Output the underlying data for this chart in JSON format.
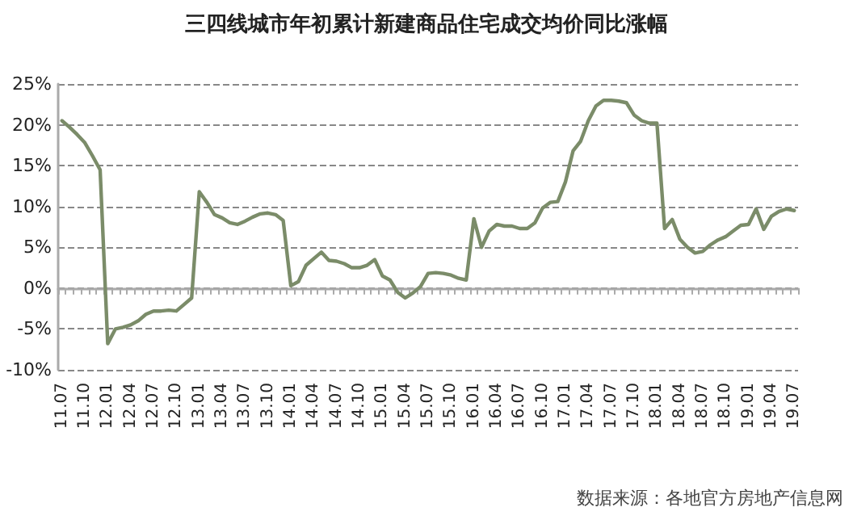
{
  "chart_data": {
    "type": "line",
    "title": "三四线城市年初累计新建商品住宅成交均价同比涨幅",
    "annotations": [
      "数据来源：各地官方房地产信息网"
    ],
    "categories": [
      "11.07",
      null,
      null,
      "11.10",
      null,
      null,
      "12.01",
      null,
      null,
      "12.04",
      null,
      null,
      "12.07",
      null,
      null,
      "12.10",
      null,
      null,
      "13.01",
      null,
      null,
      "13.04",
      null,
      null,
      "13.07",
      null,
      null,
      "13.10",
      null,
      null,
      "14.01",
      null,
      null,
      "14.04",
      null,
      null,
      "14.07",
      null,
      null,
      "14.10",
      null,
      null,
      "15.01",
      null,
      null,
      "15.04",
      null,
      null,
      "15.07",
      null,
      null,
      "15.10",
      null,
      null,
      "16.01",
      null,
      null,
      "16.04",
      null,
      null,
      "16.07",
      null,
      null,
      "16.10",
      null,
      null,
      "17.01",
      null,
      null,
      "17.04",
      null,
      null,
      "17.07",
      null,
      null,
      "17.10",
      null,
      null,
      "18.01",
      null,
      null,
      "18.04",
      null,
      null,
      "18.07",
      null,
      null,
      "18.10",
      null,
      null,
      "19.01",
      null,
      null,
      "19.04",
      null,
      null,
      "19.07"
    ],
    "series": [
      {
        "color": "#7b8c69",
        "values": [
          20.5,
          19.7,
          18.8,
          17.8,
          16.2,
          14.5,
          -6.8,
          -5.0,
          -4.8,
          -4.5,
          -4.0,
          -3.2,
          -2.8,
          -2.8,
          -2.7,
          -2.8,
          -2.0,
          -1.2,
          11.8,
          10.5,
          9.0,
          8.6,
          8.0,
          7.8,
          8.2,
          8.7,
          9.1,
          9.2,
          9.0,
          8.3,
          0.3,
          0.8,
          2.8,
          3.6,
          4.4,
          3.4,
          3.3,
          3.0,
          2.5,
          2.5,
          2.8,
          3.5,
          1.5,
          1.0,
          -0.5,
          -1.2,
          -0.6,
          0.2,
          1.8,
          1.9,
          1.8,
          1.6,
          1.2,
          1.0,
          8.5,
          5.0,
          7.0,
          7.8,
          7.6,
          7.6,
          7.3,
          7.3,
          8.0,
          9.8,
          10.5,
          10.6,
          13.0,
          16.8,
          18.0,
          20.5,
          22.3,
          23.0,
          23.0,
          22.9,
          22.7,
          21.2,
          20.5,
          20.2,
          20.2,
          7.3,
          8.4,
          6.0,
          5.0,
          4.3,
          4.5,
          5.3,
          5.9,
          6.3,
          7.0,
          7.7,
          7.8,
          9.7,
          7.2,
          8.8,
          9.4,
          9.7,
          9.5
        ]
      }
    ],
    "ylim": [
      -10,
      25
    ],
    "yticks": [
      {
        "value": -10,
        "label": "-10%"
      },
      {
        "value": -5,
        "label": "-5%"
      },
      {
        "value": 0,
        "label": "0%"
      },
      {
        "value": 5,
        "label": "5%"
      },
      {
        "value": 10,
        "label": "10%"
      },
      {
        "value": 15,
        "label": "15%"
      },
      {
        "value": 20,
        "label": "20%"
      },
      {
        "value": 25,
        "label": "25%"
      }
    ],
    "grid": "y",
    "marker": "none",
    "line_style": "solid"
  }
}
